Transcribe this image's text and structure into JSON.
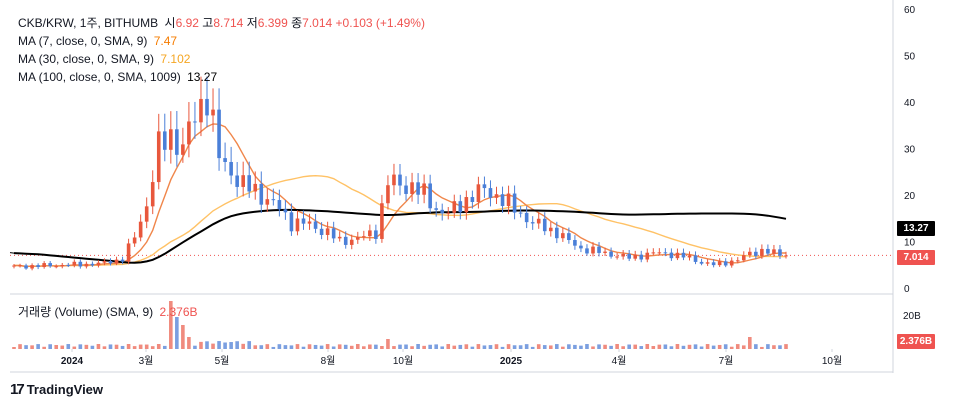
{
  "header": {
    "symbol": "CKB/KRW, 1주, BITHUMB",
    "open_label": "시",
    "open": "6.92",
    "high_label": "고",
    "high": "8.714",
    "low_label": "저",
    "low": "6.399",
    "close_label": "종",
    "close": "7.014",
    "change": "+0.103 (+1.49%)"
  },
  "indicators": [
    {
      "label": "MA (7, close, 0, SMA, 9)",
      "value": "7.47",
      "color": "#f57c00"
    },
    {
      "label": "MA (30, close, 0, SMA, 9)",
      "value": "7.102",
      "color": "#ffb74d"
    },
    {
      "label": "MA (100, close, 0, SMA, 1009)",
      "value": "13.27",
      "color": "#000000"
    }
  ],
  "volume": {
    "label": "거래량 (Volume) (SMA, 9)",
    "value": "2.376B",
    "axis_label": "20B",
    "last_tag": "2.376B"
  },
  "price_tags": {
    "ma100": "13.27",
    "last": "7.014"
  },
  "colors": {
    "up": "#ef5350",
    "down": "#2962ff",
    "up_candle": "#e8573c",
    "down_candle": "#4a7fd8"
  },
  "branding": {
    "name": "TradingView",
    "logo_icon": "tradingview-logo-icon"
  },
  "chart_data": {
    "type": "candlestick",
    "interval": "1 week",
    "y_axis_ticks": [
      0,
      10,
      20,
      30,
      40,
      50,
      60
    ],
    "ylim": [
      0,
      60
    ],
    "x_axis_ticks": [
      "2024",
      "3월",
      "5월",
      "8월",
      "10월",
      "2025",
      "4월",
      "7월",
      "10월"
    ],
    "volume_axis_ticks": [
      "20B"
    ],
    "grid": false,
    "series": [
      {
        "name": "MA (7, close, 0, SMA, 9)",
        "last": 7.47
      },
      {
        "name": "MA (30, close, 0, SMA, 9)",
        "last": 7.102
      },
      {
        "name": "MA (100, close, 0, SMA, 1009)",
        "last": 13.27
      }
    ],
    "last_bar": {
      "open": 6.92,
      "high": 8.714,
      "low": 6.399,
      "close": 7.014,
      "change": 0.103,
      "change_pct": 1.49,
      "volume": "2.376B"
    }
  }
}
